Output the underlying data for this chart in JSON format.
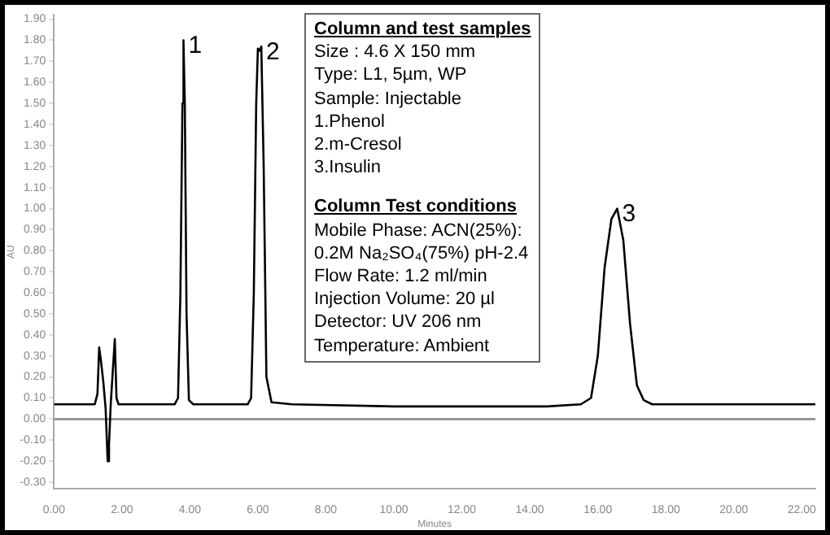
{
  "chart_data": {
    "type": "line",
    "xlabel": "Minutes",
    "ylabel": "AU",
    "x": [
      0,
      0.5,
      1.0,
      1.2,
      1.28,
      1.33,
      1.38,
      1.45,
      1.52,
      1.58,
      1.62,
      1.67,
      1.72,
      1.79,
      1.84,
      1.9,
      2.2,
      3.0,
      3.55,
      3.65,
      3.72,
      3.78,
      3.81,
      3.85,
      3.9,
      3.97,
      4.1,
      4.6,
      5.0,
      5.7,
      5.8,
      5.88,
      5.95,
      6.0,
      6.05,
      6.1,
      6.17,
      6.25,
      6.4,
      7.0,
      10,
      14.5,
      15.5,
      15.8,
      16.0,
      16.2,
      16.4,
      16.57,
      16.75,
      16.95,
      17.15,
      17.35,
      17.6,
      18.2,
      20,
      22.4
    ],
    "values": [
      0.07,
      0.07,
      0.07,
      0.07,
      0.12,
      0.34,
      0.28,
      0.18,
      0.05,
      -0.2,
      -0.12,
      0.07,
      0.2,
      0.38,
      0.1,
      0.07,
      0.07,
      0.07,
      0.07,
      0.1,
      0.6,
      1.5,
      1.8,
      1.5,
      0.5,
      0.09,
      0.07,
      0.07,
      0.07,
      0.07,
      0.1,
      0.6,
      1.5,
      1.76,
      1.75,
      1.77,
      1.2,
      0.2,
      0.08,
      0.07,
      0.06,
      0.06,
      0.07,
      0.1,
      0.3,
      0.72,
      0.95,
      1.0,
      0.85,
      0.45,
      0.16,
      0.09,
      0.07,
      0.07,
      0.07,
      0.07
    ],
    "color": "#000000",
    "marker": "none",
    "line_style": "solid",
    "grid": false,
    "legend": false,
    "xlim": [
      0,
      22.4
    ],
    "ylim": [
      -0.33,
      1.92
    ],
    "xticks": [
      {
        "value": 0,
        "label": "0.00"
      },
      {
        "value": 2,
        "label": "2.00"
      },
      {
        "value": 4,
        "label": "4.00"
      },
      {
        "value": 6,
        "label": "6.00"
      },
      {
        "value": 8,
        "label": "8.00"
      },
      {
        "value": 10,
        "label": "10.00"
      },
      {
        "value": 12,
        "label": "12.00"
      },
      {
        "value": 14,
        "label": "14.00"
      },
      {
        "value": 16,
        "label": "16.00"
      },
      {
        "value": 18,
        "label": "18.00"
      },
      {
        "value": 20,
        "label": "20.00"
      },
      {
        "value": 22,
        "label": "22.00"
      }
    ],
    "yticks": [
      {
        "value": -0.3,
        "label": "-0.30"
      },
      {
        "value": -0.2,
        "label": "-0.20"
      },
      {
        "value": -0.1,
        "label": "-0.10"
      },
      {
        "value": 0,
        "label": "0.00"
      },
      {
        "value": 0.1,
        "label": "0.10"
      },
      {
        "value": 0.2,
        "label": "0.20"
      },
      {
        "value": 0.3,
        "label": "0.30"
      },
      {
        "value": 0.4,
        "label": "0.40"
      },
      {
        "value": 0.5,
        "label": "0.50"
      },
      {
        "value": 0.6,
        "label": "0.60"
      },
      {
        "value": 0.7,
        "label": "0.70"
      },
      {
        "value": 0.8,
        "label": "0.80"
      },
      {
        "value": 0.9,
        "label": "0.90"
      },
      {
        "value": 1.0,
        "label": "1.00"
      },
      {
        "value": 1.1,
        "label": "1.10"
      },
      {
        "value": 1.2,
        "label": "1.20"
      },
      {
        "value": 1.3,
        "label": "1.30"
      },
      {
        "value": 1.4,
        "label": "1.40"
      },
      {
        "value": 1.5,
        "label": "1.50"
      },
      {
        "value": 1.6,
        "label": "1.60"
      },
      {
        "value": 1.7,
        "label": "1.70"
      },
      {
        "value": 1.8,
        "label": "1.80"
      },
      {
        "value": 1.9,
        "label": "1.90"
      }
    ],
    "ref_lines": [
      {
        "axis": "y",
        "value": 0,
        "color": "#999999"
      }
    ],
    "annotations": [
      {
        "text": "1",
        "x": 3.81,
        "y": 1.8
      },
      {
        "text": "2",
        "x": 6.1,
        "y": 1.77
      },
      {
        "text": "3",
        "x": 16.57,
        "y": 1.0
      },
      "Column and test samples",
      "Size : 4.6 X 150  mm",
      "Type: L1, 5µm, WP",
      "Sample: Injectable",
      "1.Phenol",
      "2.m-Cresol",
      "3.Insulin",
      "Column Test conditions",
      "Mobile Phase: ACN(25%):",
      "0.2M Na₂SO₄(75%) pH-2.4",
      "Flow Rate: 1.2 ml/min",
      "Injection Volume: 20 µl",
      "Detector: UV 206 nm",
      "Temperature: Ambient"
    ]
  }
}
